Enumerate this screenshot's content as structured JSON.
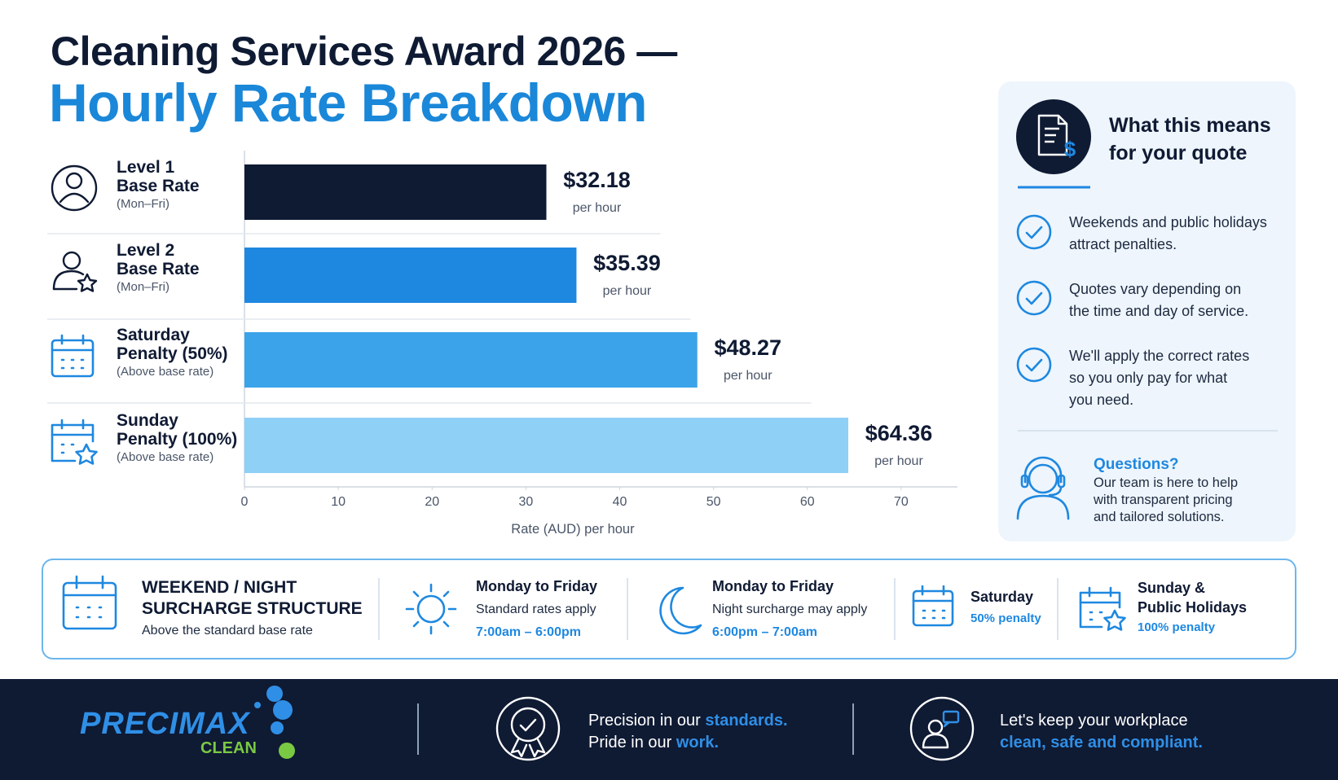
{
  "header": {
    "title_line1": "Cleaning Services Award 2026 —",
    "title_line2": "Hourly Rate Breakdown"
  },
  "chart_data": {
    "type": "bar",
    "orientation": "horizontal",
    "categories": [
      "Level 1\nBase Rate",
      "Level 2\nBase Rate",
      "Saturday\nPenalty (50%)",
      "Sunday\nPenalty (100%)"
    ],
    "category_notes": [
      "(Mon–Fri)",
      "(Mon–Fri)",
      "(Above base rate)",
      "(Above base rate)"
    ],
    "values": [
      32.18,
      35.39,
      48.27,
      64.36
    ],
    "value_labels": [
      "$32.18",
      "$35.39",
      "$48.27",
      "$64.36"
    ],
    "value_unit": "per hour",
    "colors": [
      "#0f1a33",
      "#1e88e0",
      "#3aa3ea",
      "#8fd0f7"
    ],
    "xlabel": "Rate (AUD) per hour",
    "xlim": [
      0,
      76
    ],
    "xticks": [
      0,
      10,
      20,
      30,
      40,
      50,
      60,
      70
    ],
    "grid": false
  },
  "quote_panel": {
    "title": "What this means\nfor your quote",
    "points": [
      "Weekends and public holidays\nattract penalties.",
      "Quotes vary depending on\nthe time and day of service.",
      "We'll apply the correct rates\nso you only pay for what\nyou need."
    ],
    "questions_title": "Questions?",
    "questions_text": "Our team is here to help\nwith transparent pricing\nand tailored solutions."
  },
  "surcharge": {
    "title": "WEEKEND / NIGHT\nSURCHARGE STRUCTURE",
    "subtitle": "Above the standard base rate",
    "items": [
      {
        "title": "Monday to Friday",
        "text": "Standard rates apply",
        "note": "7:00am – 6:00pm"
      },
      {
        "title": "Monday to Friday",
        "text": "Night surcharge may apply",
        "note": "6:00pm – 7:00am"
      },
      {
        "title": "Saturday",
        "note": "50% penalty"
      },
      {
        "title": "Sunday &\nPublic Holidays",
        "note": "100% penalty"
      }
    ]
  },
  "footer": {
    "brand": "PRECIMAX",
    "brand_sub": "CLEAN",
    "tagline1": {
      "line1_a": "Precision in our ",
      "line1_b": "standards.",
      "line2_a": "Pride in our ",
      "line2_b": "work."
    },
    "tagline2": {
      "line1": "Let's keep your workplace",
      "line2": "clean, safe and compliant."
    }
  }
}
